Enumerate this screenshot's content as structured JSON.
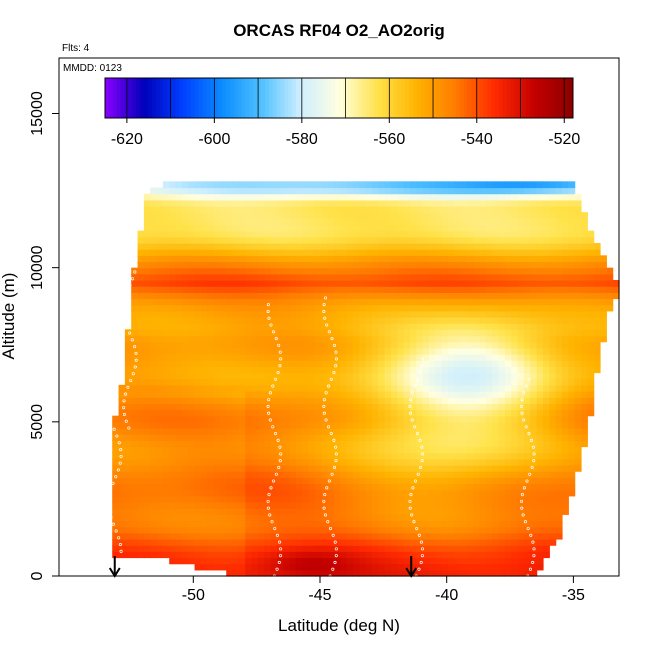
{
  "chart_data": {
    "type": "heatmap",
    "title": "ORCAS RF04 O2_AO2orig",
    "annotations": [
      "Flts: 4",
      "MMDD: 0123"
    ],
    "xlabel": "Latitude (deg N)",
    "ylabel": "Altitude (m)",
    "xlim": [
      -55.3,
      -33.2
    ],
    "ylim": [
      0,
      16800
    ],
    "xticks": [
      -50,
      -45,
      -40,
      -35
    ],
    "xtick_labels": [
      "-50",
      "-45",
      "-40",
      "-35"
    ],
    "yticks": [
      0,
      5000,
      10000,
      15000
    ],
    "ytick_labels": [
      "0",
      "5000",
      "10000",
      "15000"
    ],
    "colorbar": {
      "min": -625,
      "max": -518,
      "ticks": [
        -620,
        -600,
        -580,
        -560,
        -540,
        -520
      ],
      "tick_labels": [
        "-620",
        "-600",
        "-580",
        "-560",
        "-540",
        "-520"
      ],
      "colors": [
        "#8b00ff",
        "#0000bb",
        "#0040ff",
        "#0a8cff",
        "#4fc0ff",
        "#cdeeff",
        "#ffffe0",
        "#ffe24a",
        "#ffb300",
        "#ff7a00",
        "#ff2a00",
        "#c40000",
        "#8b0000"
      ]
    },
    "domain": {
      "lat_start": -53.2,
      "lat_end": -33.4,
      "bottom_alt": [
        {
          "lat": -53.2,
          "alt": 800
        },
        {
          "lat": -51.0,
          "alt": 600
        },
        {
          "lat": -49.0,
          "alt": 250
        },
        {
          "lat": -47.0,
          "alt": 0
        },
        {
          "lat": -36.5,
          "alt": 0
        },
        {
          "lat": -36.0,
          "alt": 800
        },
        {
          "lat": -35.5,
          "alt": 1500
        },
        {
          "lat": -34.5,
          "alt": 4500
        },
        {
          "lat": -34.0,
          "alt": 7000
        },
        {
          "lat": -33.6,
          "alt": 8700
        },
        {
          "lat": -33.4,
          "alt": 9000
        }
      ],
      "top_alt": [
        {
          "lat": -53.2,
          "alt": 4700
        },
        {
          "lat": -52.8,
          "alt": 6300
        },
        {
          "lat": -52.3,
          "alt": 10000
        },
        {
          "lat": -51.8,
          "alt": 12500
        },
        {
          "lat": -50.5,
          "alt": 12700
        },
        {
          "lat": -48.0,
          "alt": 12800
        },
        {
          "lat": -40.0,
          "alt": 12800
        },
        {
          "lat": -37.0,
          "alt": 12800
        },
        {
          "lat": -35.0,
          "alt": 12800
        },
        {
          "lat": -34.5,
          "alt": 11500
        },
        {
          "lat": -33.4,
          "alt": 9500
        }
      ]
    },
    "profile": [
      {
        "alt": 0,
        "value": -533
      },
      {
        "alt": 500,
        "value": -537
      },
      {
        "alt": 1500,
        "value": -541
      },
      {
        "alt": 3000,
        "value": -544
      },
      {
        "alt": 5000,
        "value": -545
      },
      {
        "alt": 6500,
        "value": -550
      },
      {
        "alt": 8000,
        "value": -553
      },
      {
        "alt": 9000,
        "value": -545
      },
      {
        "alt": 9500,
        "value": -540
      },
      {
        "alt": 10000,
        "value": -548
      },
      {
        "alt": 11000,
        "value": -560
      },
      {
        "alt": 12000,
        "value": -566
      },
      {
        "alt": 12700,
        "value": -572
      },
      {
        "alt": 13000,
        "value": -578
      }
    ],
    "features": [
      {
        "lat": -40.0,
        "alt": 5000,
        "lat_width": 4.0,
        "alt_width": 2600,
        "delta": -20
      },
      {
        "lat": -38.5,
        "alt": 7000,
        "lat_width": 3.0,
        "alt_width": 1500,
        "delta": -14
      },
      {
        "lat": -45.5,
        "alt": 400,
        "lat_width": 2.0,
        "alt_width": 500,
        "delta": 8
      },
      {
        "lat": -41.5,
        "alt": 12600,
        "lat_width": 12.0,
        "alt_width": 300,
        "delta": -18
      },
      {
        "lat": -36.5,
        "alt": 12750,
        "lat_width": 3.0,
        "alt_width": 300,
        "delta": -12
      }
    ],
    "flight_tracks": [
      {
        "lat": -46.8,
        "alt_start": 0,
        "alt_end": 8800
      },
      {
        "lat": -44.6,
        "alt_start": 0,
        "alt_end": 9200
      },
      {
        "lat": -41.2,
        "alt_start": 0,
        "alt_end": 7200
      },
      {
        "lat": -36.8,
        "alt_start": 0,
        "alt_end": 6500
      },
      {
        "lat": -53.1,
        "alt_start": 800,
        "alt_end": 4800
      },
      {
        "lat": -52.5,
        "alt_start": 4800,
        "alt_end": 12300
      }
    ],
    "arrows": [
      {
        "lat": -53.1
      },
      {
        "lat": -41.4
      }
    ]
  }
}
